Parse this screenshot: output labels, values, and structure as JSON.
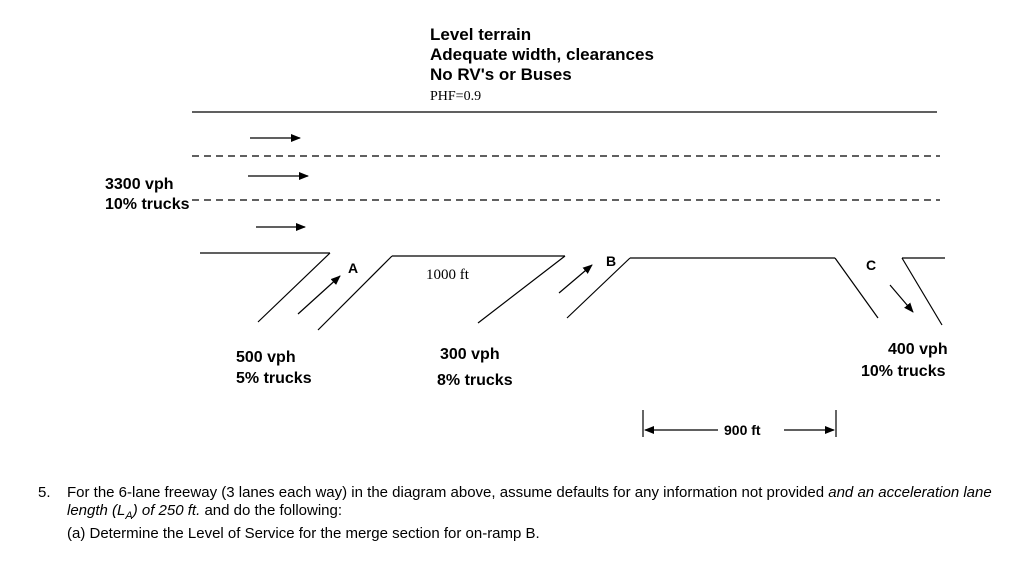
{
  "conditions": {
    "line1": "Level terrain",
    "line2": "Adequate width, clearances",
    "line3": "No RV's or Buses",
    "phf": "PHF=0.9"
  },
  "mainline": {
    "volume": "3300 vph",
    "trucks": "10% trucks"
  },
  "ramps": {
    "A": {
      "label": "A",
      "volume": "500 vph",
      "trucks": "5% trucks"
    },
    "B": {
      "label": "B",
      "volume": "300 vph",
      "trucks": "8% trucks"
    },
    "C": {
      "label": "C",
      "volume": "400 vph",
      "trucks": "10% trucks"
    }
  },
  "distances": {
    "ab": "1000 ft",
    "bc": "900 ft"
  },
  "problem": {
    "number": "5.",
    "text_part1": "For the 6-lane freeway (3 lanes each way) in the diagram above, assume defaults for any information not provided",
    "text_part2_italic": "and an acceleration lane length (L",
    "text_subscript": "A",
    "text_part3_italic": ") of 250 ft.",
    "text_part4": "and do the following:",
    "part_a": "(a) Determine the Level of Service for the merge section for on-ramp B."
  }
}
